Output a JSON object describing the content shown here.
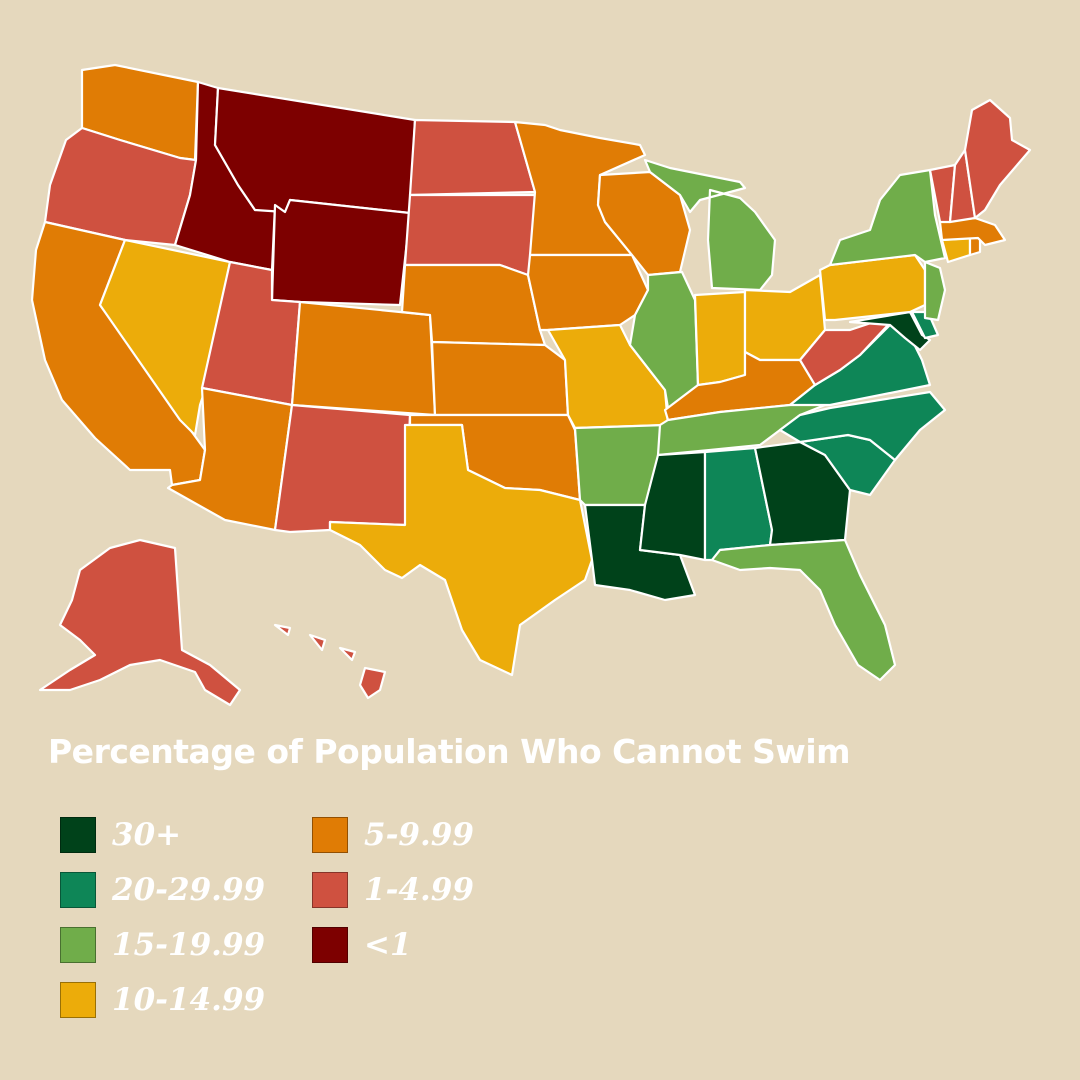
{
  "title": "Percentage of Population Who Cannot Swim",
  "colors": {
    "background": "#e5d8bd",
    "border": "#ffffff",
    "c30plus": "#00421a",
    "c20_29": "#0e8657",
    "c15_19": "#70ad4a",
    "c10_14": "#ecac0a",
    "c5_9": "#e07c05",
    "c1_4": "#cf5140",
    "c_lt1": "#7d0000"
  },
  "legend": [
    {
      "label": "30+",
      "color": "#00421a"
    },
    {
      "label": "20-29.99",
      "color": "#0e8657"
    },
    {
      "label": "15-19.99",
      "color": "#70ad4a"
    },
    {
      "label": "10-14.99",
      "color": "#ecac0a"
    },
    {
      "label": "5-9.99",
      "color": "#e07c05"
    },
    {
      "label": "1-4.99",
      "color": "#cf5140"
    },
    {
      "label": "<1",
      "color": "#7d0000"
    }
  ],
  "state_bins": {
    "WA": "5-9.99",
    "OR": "1-4.99",
    "CA": "5-9.99",
    "NV": "10-14.99",
    "ID": "<1",
    "MT": "<1",
    "WY": "<1",
    "UT": "1-4.99",
    "AZ": "5-9.99",
    "CO": "5-9.99",
    "NM": "1-4.99",
    "ND": "1-4.99",
    "SD": "1-4.99",
    "NE": "5-9.99",
    "KS": "5-9.99",
    "OK": "5-9.99",
    "TX": "10-14.99",
    "MN": "5-9.99",
    "IA": "5-9.99",
    "MO": "10-14.99",
    "AR": "15-19.99",
    "LA": "30+",
    "WI": "5-9.99",
    "IL": "15-19.99",
    "MI": "15-19.99",
    "IN": "10-14.99",
    "OH": "10-14.99",
    "KY": "5-9.99",
    "TN": "15-19.99",
    "MS": "30+",
    "AL": "20-29.99",
    "GA": "30+",
    "FL": "15-19.99",
    "SC": "20-29.99",
    "NC": "20-29.99",
    "VA": "20-29.99",
    "WV": "1-4.99",
    "MD": "30+",
    "DE": "20-29.99",
    "NJ": "15-19.99",
    "PA": "10-14.99",
    "NY": "15-19.99",
    "CT": "10-14.99",
    "RI": "5-9.99",
    "MA": "5-9.99",
    "VT": "1-4.99",
    "NH": "1-4.99",
    "ME": "1-4.99",
    "AK": "1-4.99",
    "HI": "1-4.99"
  }
}
